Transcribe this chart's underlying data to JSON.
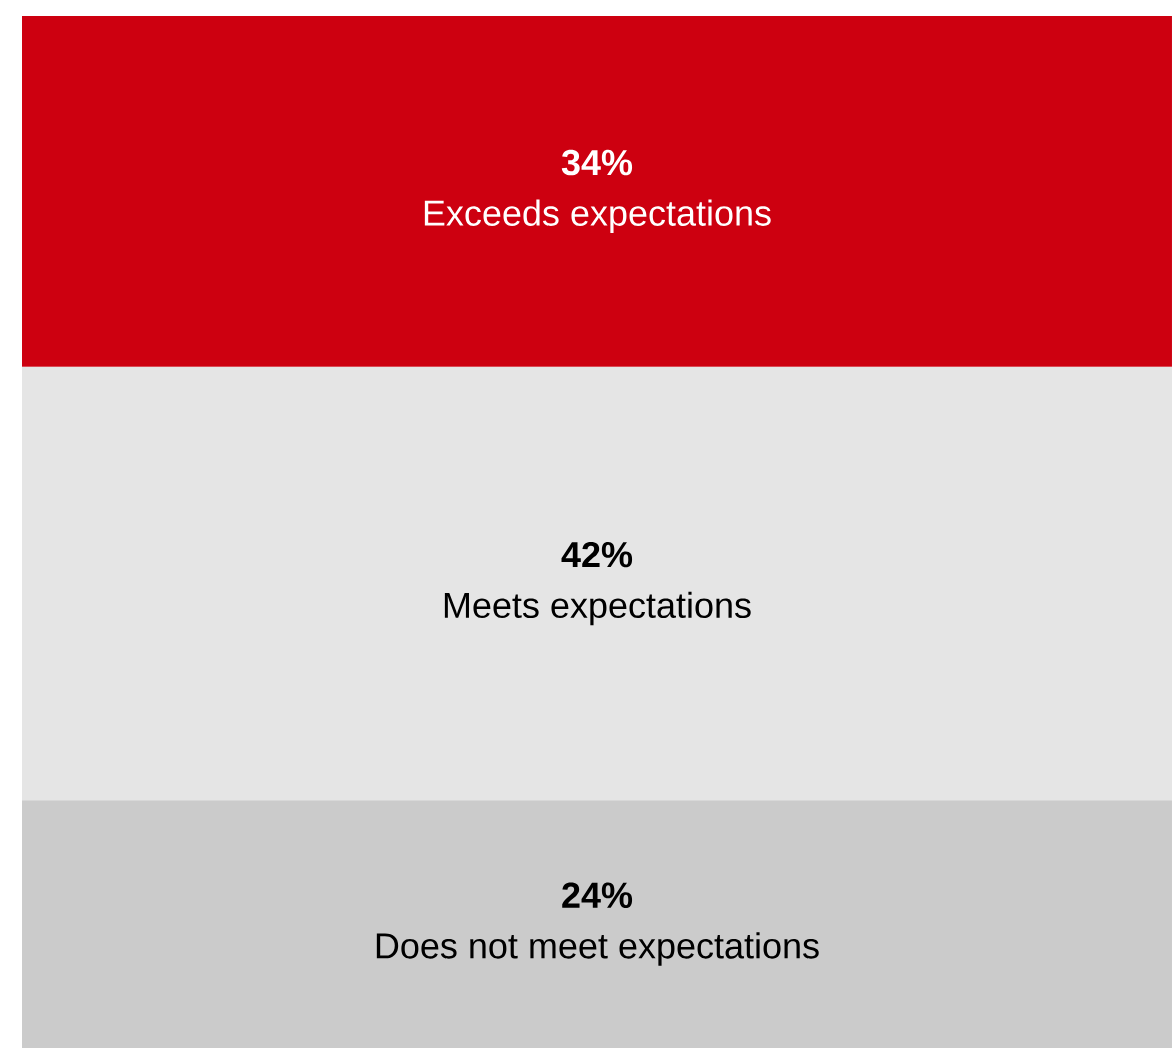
{
  "chart_data": {
    "type": "bar",
    "stacked": true,
    "categories": [
      null
    ],
    "series": [
      {
        "name": "Does not meet expectations",
        "color": "#cbcbcb",
        "values": [
          24
        ],
        "value_labels": [
          "24%"
        ]
      },
      {
        "name": "Meets expectations",
        "color": "#e5e5e5",
        "values": [
          42
        ],
        "value_labels": [
          "42%"
        ]
      },
      {
        "name": "Exceeds expectations",
        "color": "#cd0010",
        "values": [
          34
        ],
        "value_labels": [
          "34%"
        ]
      }
    ]
  }
}
